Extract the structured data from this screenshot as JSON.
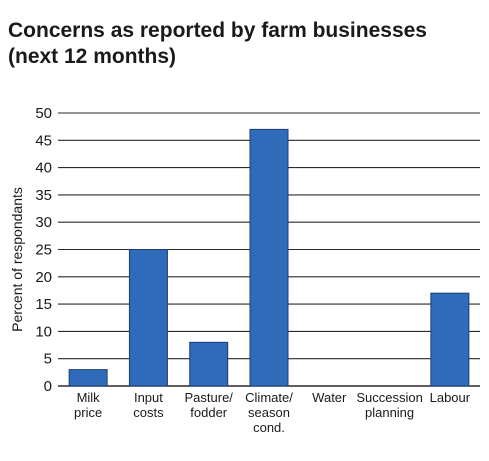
{
  "chart_data": {
    "type": "bar",
    "title_lines": [
      "Concerns as reported by farm businesses",
      "(next 12 months)"
    ],
    "xlabel": "",
    "ylabel": "Percent of respondants",
    "ylim": [
      0,
      50
    ],
    "yticks": [
      0,
      5,
      10,
      15,
      20,
      25,
      30,
      35,
      40,
      45,
      50
    ],
    "grid": true,
    "legend": "none",
    "categories": [
      [
        "Milk",
        "price"
      ],
      [
        "Input",
        "costs"
      ],
      [
        "Pasture/",
        "fodder"
      ],
      [
        "Climate/",
        "season",
        "cond."
      ],
      [
        "Water"
      ],
      [
        "Succession",
        "planning"
      ],
      [
        "Labour"
      ]
    ],
    "values": [
      3,
      25,
      8,
      47,
      0,
      0,
      17
    ],
    "colors": {
      "bar_fill": "#2f6bb8",
      "bar_stroke": "#1c3f73",
      "grid": "#2a2a2a",
      "text": "#1a1a1a"
    }
  }
}
